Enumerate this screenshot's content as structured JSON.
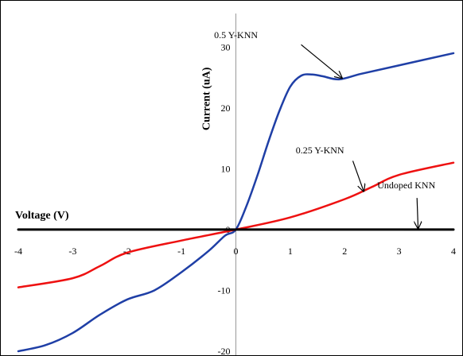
{
  "chart_data": {
    "type": "line",
    "title": "",
    "xlabel": "Voltage (V)",
    "ylabel": "Current (uA)",
    "xlim": [
      -4,
      4
    ],
    "ylim": [
      -20,
      35
    ],
    "xticks": [
      -4,
      -3,
      -2,
      -1,
      0,
      1,
      2,
      3,
      4
    ],
    "yticks": [
      -20,
      -10,
      0,
      10,
      20,
      30
    ],
    "grid": false,
    "legend": "none",
    "series": [
      {
        "name": "0.5 Y-KNN",
        "color": "#1f3fa6",
        "x": [
          -4,
          -3.5,
          -3,
          -2.5,
          -2,
          -1.5,
          -1,
          -0.5,
          -0.2,
          0,
          0.2,
          0.4,
          0.6,
          0.8,
          1.0,
          1.2,
          1.4,
          1.6,
          1.9,
          2.3,
          3,
          4
        ],
        "y": [
          -20,
          -19,
          -17,
          -14,
          -11.5,
          -10,
          -7,
          -3.5,
          -1,
          0,
          4,
          9,
          14.5,
          19.5,
          23.5,
          25.3,
          25.5,
          25.2,
          24.7,
          25.6,
          27,
          29
        ]
      },
      {
        "name": "0.25 Y-KNN",
        "color": "#ee1111",
        "x": [
          -4,
          -3,
          -2.5,
          -2,
          -1,
          0,
          1,
          2,
          2.5,
          3,
          4
        ],
        "y": [
          -9.5,
          -8,
          -6,
          -3.8,
          -1.8,
          0,
          2,
          5,
          7,
          9,
          11
        ]
      },
      {
        "name": "Undoped KNN",
        "color": "#000000",
        "x": [
          -4,
          4
        ],
        "y": [
          0,
          0
        ]
      }
    ],
    "annotations": [
      {
        "text": "0.5 Y-KNN",
        "x": -0.4,
        "y": 31.5,
        "arrow_to": [
          1.95,
          24.9
        ]
      },
      {
        "text": "0.25 Y-KNN",
        "x": 1.1,
        "y": 12.5,
        "arrow_to": [
          2.35,
          6.3
        ]
      },
      {
        "text": "Undoped KNN",
        "x": 2.6,
        "y": 6.8,
        "arrow_to": [
          3.35,
          0.2
        ]
      }
    ]
  }
}
